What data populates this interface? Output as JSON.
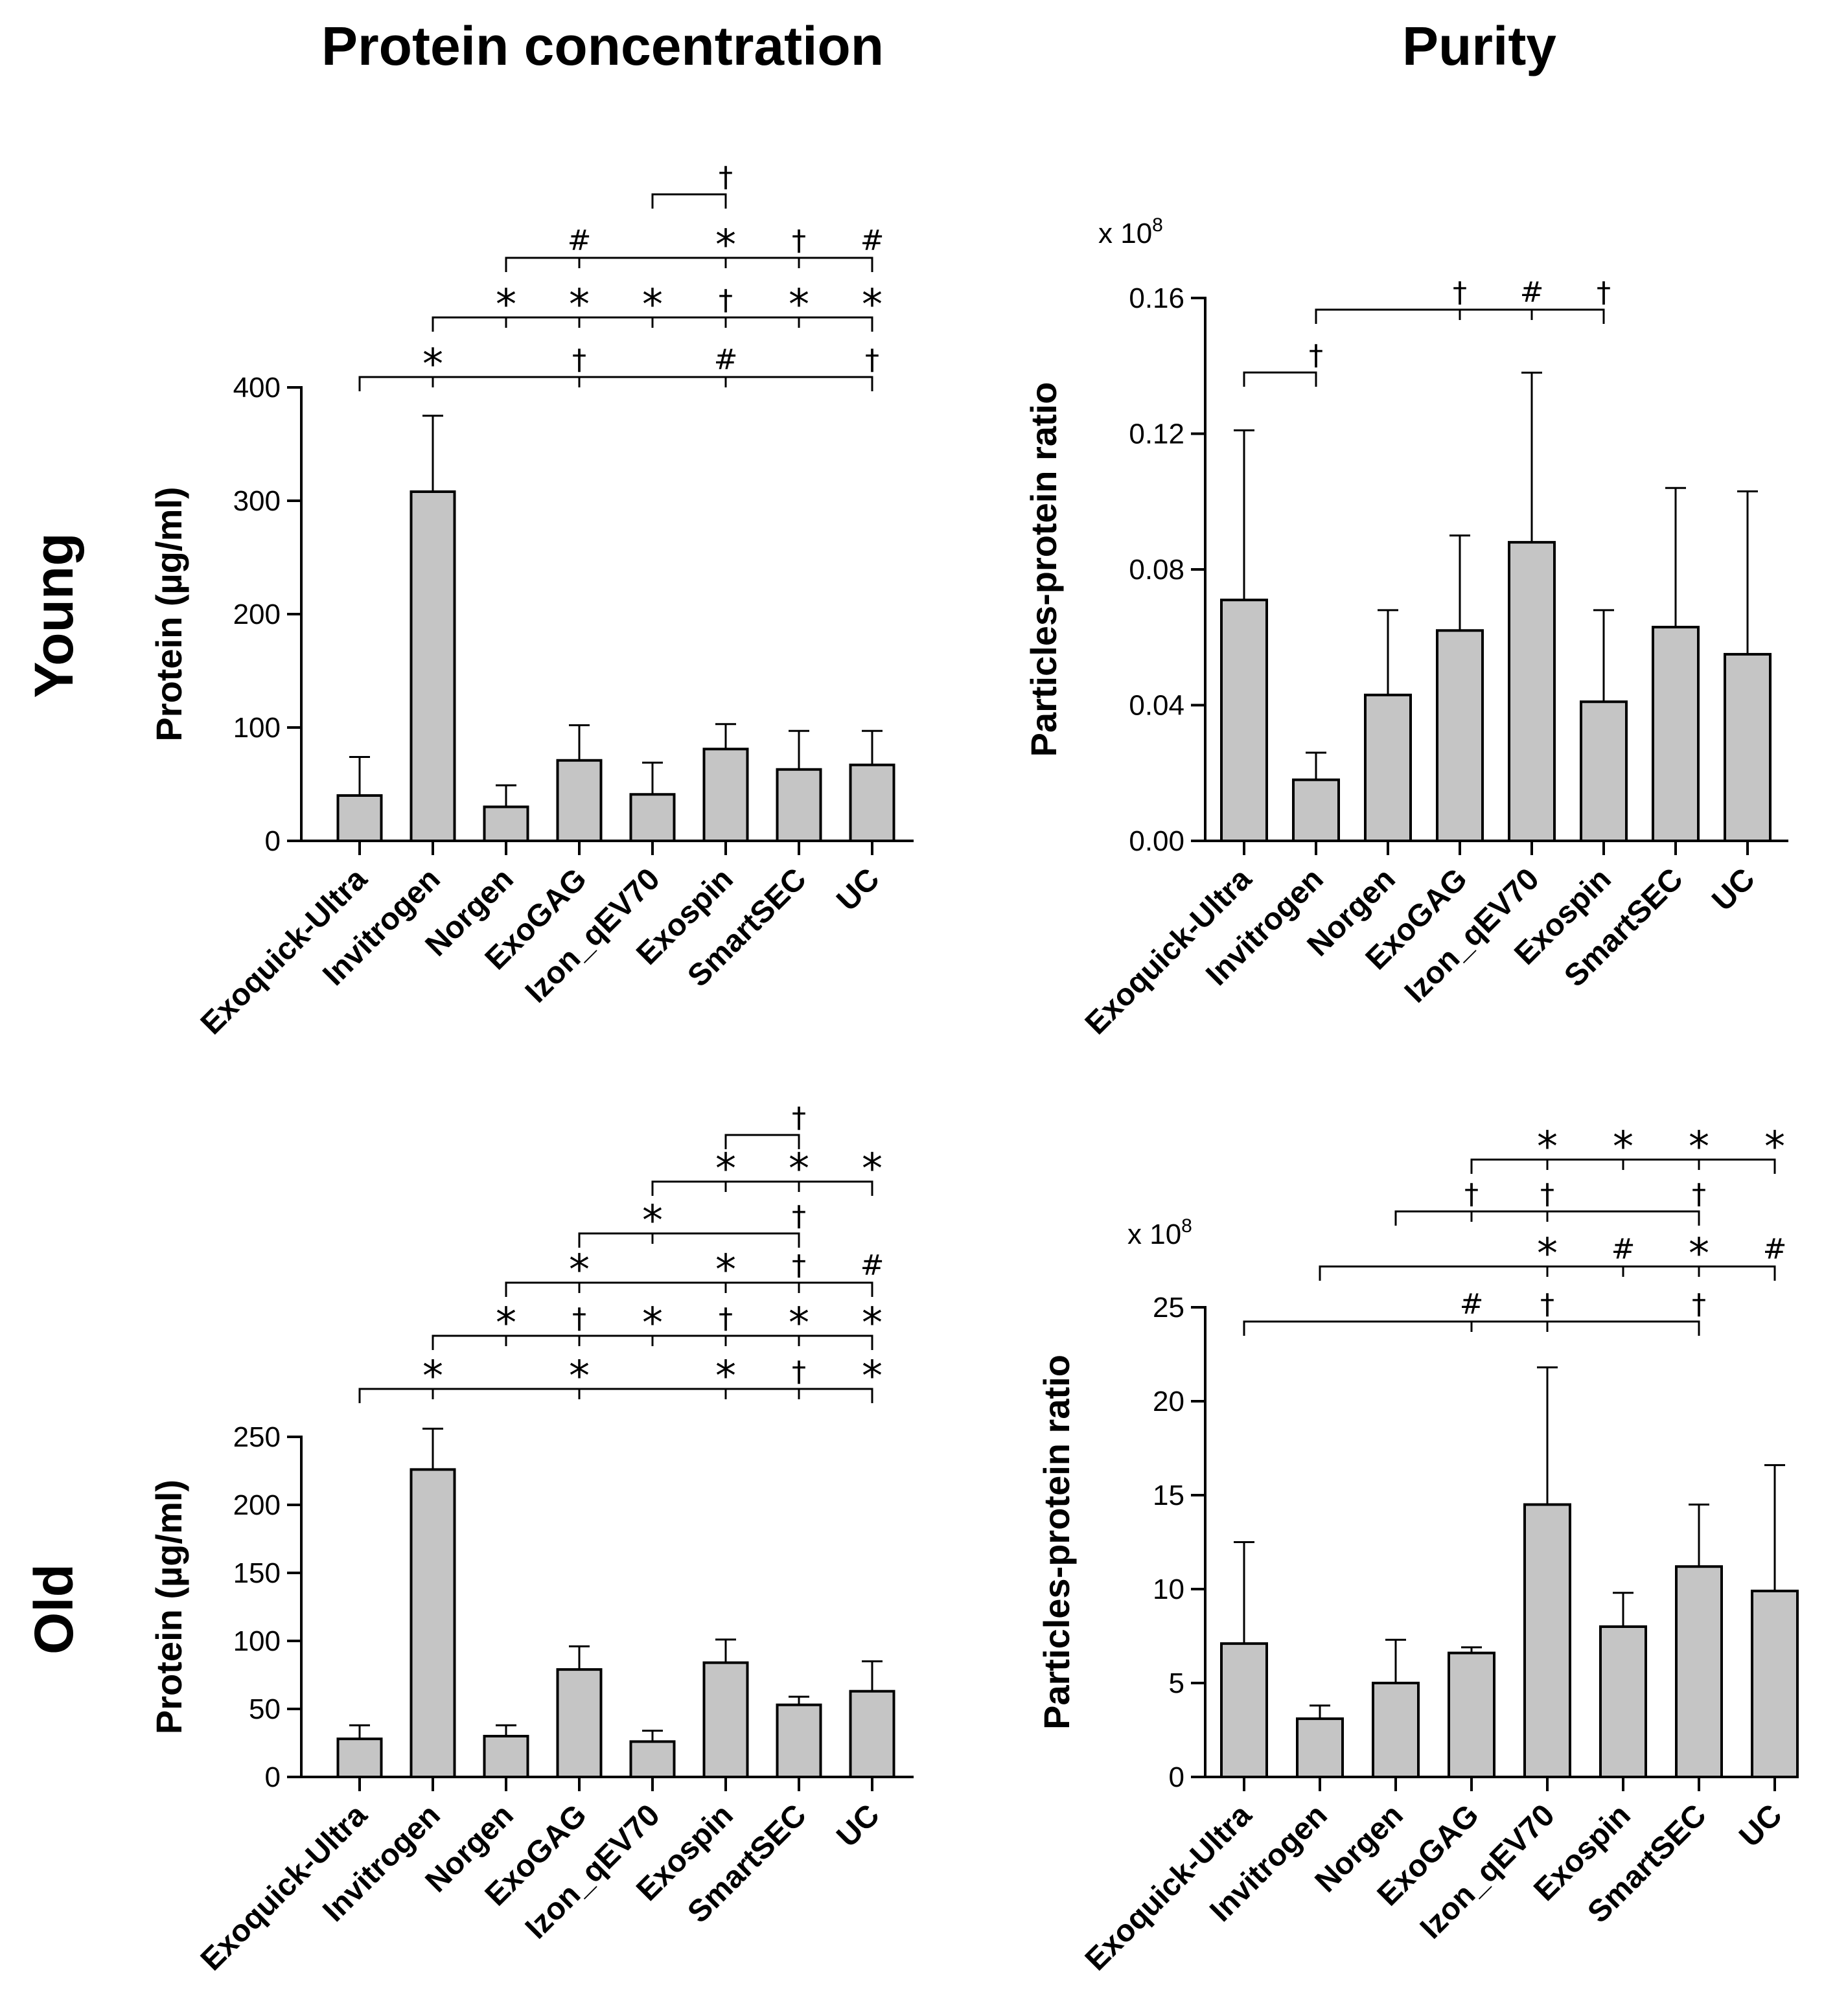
{
  "figure": {
    "col_titles": [
      "Protein concentration",
      "Purity"
    ],
    "row_labels": [
      "Young",
      "Old"
    ]
  },
  "chart_data": [
    {
      "id": "young-protein",
      "type": "bar",
      "title": "Protein concentration",
      "row": "Young",
      "ylabel": "Protein (µg/ml)",
      "xlabel": "",
      "ylim": [
        0,
        400
      ],
      "yticks": [
        0,
        100,
        200,
        300,
        400
      ],
      "ytick_labels": [
        "0",
        "100",
        "200",
        "300",
        "400"
      ],
      "categories": [
        "Exoquick-Ultra",
        "Invitrogen",
        "Norgen",
        "ExoGAG",
        "Izon_qEV70",
        "Exospin",
        "SmartSEC",
        "UC"
      ],
      "values": [
        40,
        308,
        30,
        71,
        41,
        81,
        63,
        67
      ],
      "errors": [
        34,
        67,
        19,
        31,
        28,
        22,
        34,
        30
      ],
      "significance": [
        {
          "from": 0,
          "to": 7,
          "marks": [
            {
              "at": 1,
              "sym": "*"
            },
            {
              "at": 3,
              "sym": "†"
            },
            {
              "at": 5,
              "sym": "#"
            },
            {
              "at": 7,
              "sym": "†"
            }
          ]
        },
        {
          "from": 1,
          "to": 7,
          "marks": [
            {
              "at": 2,
              "sym": "*"
            },
            {
              "at": 3,
              "sym": "*"
            },
            {
              "at": 4,
              "sym": "*"
            },
            {
              "at": 5,
              "sym": "†"
            },
            {
              "at": 6,
              "sym": "*"
            },
            {
              "at": 7,
              "sym": "*"
            }
          ]
        },
        {
          "from": 2,
          "to": 7,
          "marks": [
            {
              "at": 3,
              "sym": "#"
            },
            {
              "at": 5,
              "sym": "*"
            },
            {
              "at": 6,
              "sym": "†"
            },
            {
              "at": 7,
              "sym": "#"
            }
          ]
        },
        {
          "from": 4,
          "to": 5,
          "marks": [
            {
              "at": 5,
              "sym": "†"
            }
          ]
        }
      ]
    },
    {
      "id": "young-purity",
      "type": "bar",
      "title": "Purity",
      "row": "Young",
      "ylabel": "Particles-protein ratio",
      "xlabel": "",
      "scale_label": "x 10",
      "scale_exponent": "8",
      "ylim": [
        0,
        0.16
      ],
      "yticks": [
        0,
        0.04,
        0.08,
        0.12,
        0.16
      ],
      "ytick_labels": [
        "0.00",
        "0.04",
        "0.08",
        "0.12",
        "0.16"
      ],
      "categories": [
        "Exoquick-Ultra",
        "Invitrogen",
        "Norgen",
        "ExoGAG",
        "Izon_qEV70",
        "Exospin",
        "SmartSEC",
        "UC"
      ],
      "values": [
        0.071,
        0.018,
        0.043,
        0.062,
        0.088,
        0.041,
        0.063,
        0.055
      ],
      "errors": [
        0.05,
        0.008,
        0.025,
        0.028,
        0.05,
        0.027,
        0.041,
        0.048
      ],
      "significance": [
        {
          "from": 0,
          "to": 1,
          "marks": [
            {
              "at": 1,
              "sym": "†"
            }
          ]
        },
        {
          "from": 1,
          "to": 5,
          "marks": [
            {
              "at": 3,
              "sym": "†"
            },
            {
              "at": 4,
              "sym": "#"
            },
            {
              "at": 5,
              "sym": "†"
            }
          ]
        }
      ]
    },
    {
      "id": "old-protein",
      "type": "bar",
      "title": "Protein concentration",
      "row": "Old",
      "ylabel": "Protein (µg/ml)",
      "xlabel": "",
      "ylim": [
        0,
        250
      ],
      "yticks": [
        0,
        50,
        100,
        150,
        200,
        250
      ],
      "ytick_labels": [
        "0",
        "50",
        "100",
        "150",
        "200",
        "250"
      ],
      "categories": [
        "Exoquick-Ultra",
        "Invitrogen",
        "Norgen",
        "ExoGAG",
        "Izon_qEV70",
        "Exospin",
        "SmartSEC",
        "UC"
      ],
      "values": [
        28,
        226,
        30,
        79,
        26,
        84,
        53,
        63
      ],
      "errors": [
        10,
        30,
        8,
        17,
        8,
        17,
        6,
        22
      ],
      "significance": [
        {
          "from": 0,
          "to": 7,
          "marks": [
            {
              "at": 1,
              "sym": "*"
            },
            {
              "at": 3,
              "sym": "*"
            },
            {
              "at": 5,
              "sym": "*"
            },
            {
              "at": 6,
              "sym": "†"
            },
            {
              "at": 7,
              "sym": "*"
            }
          ]
        },
        {
          "from": 1,
          "to": 7,
          "marks": [
            {
              "at": 2,
              "sym": "*"
            },
            {
              "at": 3,
              "sym": "†"
            },
            {
              "at": 4,
              "sym": "*"
            },
            {
              "at": 5,
              "sym": "†"
            },
            {
              "at": 6,
              "sym": "*"
            },
            {
              "at": 7,
              "sym": "*"
            }
          ]
        },
        {
          "from": 2,
          "to": 7,
          "marks": [
            {
              "at": 3,
              "sym": "*"
            },
            {
              "at": 5,
              "sym": "*"
            },
            {
              "at": 6,
              "sym": "†"
            },
            {
              "at": 7,
              "sym": "#"
            }
          ]
        },
        {
          "from": 3,
          "to": 6,
          "marks": [
            {
              "at": 4,
              "sym": "*"
            },
            {
              "at": 6,
              "sym": "†"
            }
          ]
        },
        {
          "from": 4,
          "to": 7,
          "marks": [
            {
              "at": 5,
              "sym": "*"
            },
            {
              "at": 6,
              "sym": "*"
            },
            {
              "at": 7,
              "sym": "*"
            }
          ]
        },
        {
          "from": 5,
          "to": 6,
          "marks": [
            {
              "at": 6,
              "sym": "†"
            }
          ]
        }
      ]
    },
    {
      "id": "old-purity",
      "type": "bar",
      "title": "Purity",
      "row": "Old",
      "ylabel": "Particles-protein ratio",
      "xlabel": "",
      "scale_label": "x 10",
      "scale_exponent": "8",
      "ylim": [
        0,
        25
      ],
      "yticks": [
        0,
        5,
        10,
        15,
        20,
        25
      ],
      "ytick_labels": [
        "0",
        "5",
        "10",
        "15",
        "20",
        "25"
      ],
      "categories": [
        "Exoquick-Ultra",
        "Invitrogen",
        "Norgen",
        "ExoGAG",
        "Izon_qEV70",
        "Exospin",
        "SmartSEC",
        "UC"
      ],
      "values": [
        7.1,
        3.1,
        5.0,
        6.6,
        14.5,
        8.0,
        11.2,
        9.9
      ],
      "errors": [
        5.4,
        0.7,
        2.3,
        0.3,
        7.3,
        1.8,
        3.3,
        6.7
      ],
      "significance": [
        {
          "from": 0,
          "to": 6,
          "marks": [
            {
              "at": 3,
              "sym": "#"
            },
            {
              "at": 4,
              "sym": "†"
            },
            {
              "at": 6,
              "sym": "†"
            }
          ]
        },
        {
          "from": 1,
          "to": 7,
          "marks": [
            {
              "at": 4,
              "sym": "*"
            },
            {
              "at": 5,
              "sym": "#"
            },
            {
              "at": 6,
              "sym": "*"
            },
            {
              "at": 7,
              "sym": "#"
            }
          ]
        },
        {
          "from": 2,
          "to": 6,
          "marks": [
            {
              "at": 3,
              "sym": "†"
            },
            {
              "at": 4,
              "sym": "†"
            },
            {
              "at": 6,
              "sym": "†"
            }
          ]
        },
        {
          "from": 3,
          "to": 7,
          "marks": [
            {
              "at": 4,
              "sym": "*"
            },
            {
              "at": 5,
              "sym": "*"
            },
            {
              "at": 6,
              "sym": "*"
            },
            {
              "at": 7,
              "sym": "*"
            }
          ]
        }
      ]
    }
  ]
}
